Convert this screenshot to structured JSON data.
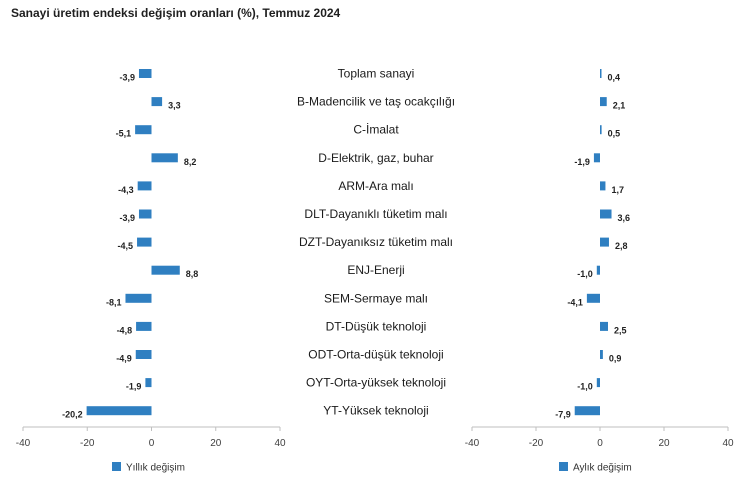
{
  "chart_data": {
    "title": "Sanayi üretim endeksi değişim oranları (%), Temmuz 2024",
    "categories": [
      "Toplam sanayi",
      "B-Madencilik ve taş ocakçılığı",
      "C-İmalat",
      "D-Elektrik, gaz, buhar",
      "ARM-Ara malı",
      "DLT-Dayanıklı tüketim malı",
      "DZT-Dayanıksız tüketim malı",
      "ENJ-Enerji",
      "SEM-Sermaye malı",
      "DT-Düşük teknoloji",
      "ODT-Orta-düşük teknoloji",
      "OYT-Orta-yüksek teknoloji",
      "YT-Yüksek teknoloji"
    ],
    "panels": [
      {
        "type": "bar",
        "orientation": "horizontal",
        "series_name": "Yıllık değişim",
        "values": [
          -3.9,
          3.3,
          -5.1,
          8.2,
          -4.3,
          -3.9,
          -4.5,
          8.8,
          -8.1,
          -4.8,
          -4.9,
          -1.9,
          -20.2
        ],
        "value_labels": [
          "-3,9",
          "3,3",
          "-5,1",
          "8,2",
          "-4,3",
          "-3,9",
          "-4,5",
          "8,8",
          "-8,1",
          "-4,8",
          "-4,9",
          "-1,9",
          "-20,2"
        ],
        "xlim": [
          -40,
          40
        ],
        "xticks": [
          -40,
          -20,
          0,
          20,
          40
        ],
        "xtick_labels": [
          "-40",
          "-20",
          "0",
          "20",
          "40"
        ],
        "legend_position": "bottom",
        "color": "#2f7fc1"
      },
      {
        "type": "bar",
        "orientation": "horizontal",
        "series_name": "Aylık değişim",
        "values": [
          0.4,
          2.1,
          0.5,
          -1.9,
          1.7,
          3.6,
          2.8,
          -1.0,
          -4.1,
          2.5,
          0.9,
          -1.0,
          -7.9
        ],
        "value_labels": [
          "0,4",
          "2,1",
          "0,5",
          "-1,9",
          "1,7",
          "3,6",
          "2,8",
          "-1,0",
          "-4,1",
          "2,5",
          "0,9",
          "-1,0",
          "-7,9"
        ],
        "xlim": [
          -40,
          40
        ],
        "xticks": [
          -40,
          -20,
          0,
          20,
          40
        ],
        "xtick_labels": [
          "-40",
          "-20",
          "0",
          "20",
          "40"
        ],
        "legend_position": "bottom",
        "color": "#2f7fc1"
      }
    ],
    "grid": false,
    "axis_color": "#bfbfbf"
  }
}
